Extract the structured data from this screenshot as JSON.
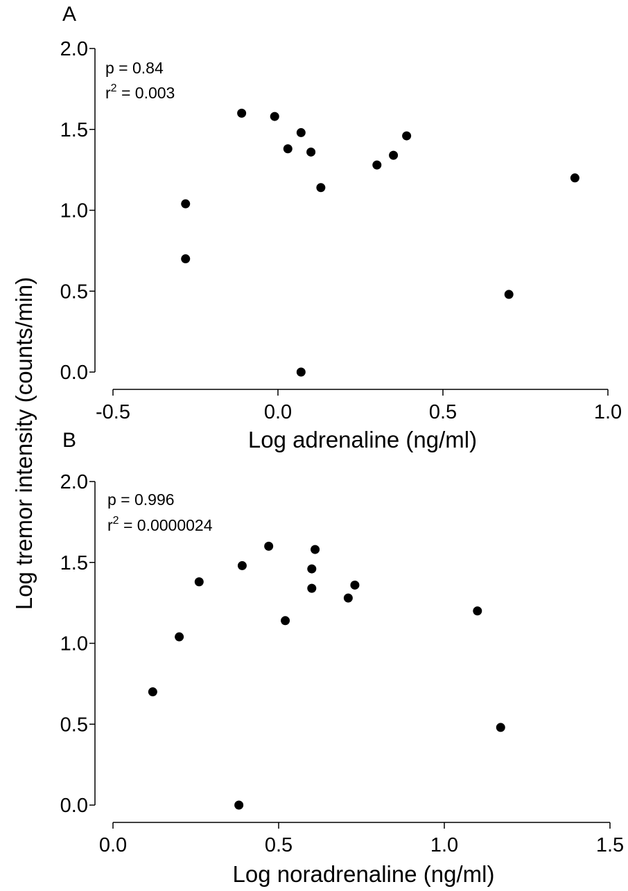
{
  "figure": {
    "shared_ylabel": "Log tremor intensity (counts/min)"
  },
  "chart_data": [
    {
      "type": "scatter",
      "panel_label": "A",
      "xlabel": "Log adrenaline (ng/ml)",
      "ylabel": "Log tremor intensity (counts/min)",
      "xlim": [
        -0.5,
        1.0
      ],
      "ylim": [
        0.0,
        2.0
      ],
      "x_ticks": [
        -0.5,
        0.0,
        0.5,
        1.0
      ],
      "x_tick_labels": [
        "-0.5",
        "0.0",
        "0.5",
        "1.0"
      ],
      "y_ticks": [
        0.0,
        0.5,
        1.0,
        1.5,
        2.0
      ],
      "y_tick_labels": [
        "0.0",
        "0.5",
        "1.0",
        "1.5",
        "2.0"
      ],
      "stats": {
        "p_text": "p = 0.84",
        "r2_prefix": "r",
        "r2_sup": "2",
        "r2_value": " = 0.003"
      },
      "points": [
        {
          "x": -0.28,
          "y": 1.04
        },
        {
          "x": -0.28,
          "y": 0.7
        },
        {
          "x": -0.11,
          "y": 1.6
        },
        {
          "x": -0.01,
          "y": 1.58
        },
        {
          "x": 0.03,
          "y": 1.38
        },
        {
          "x": 0.07,
          "y": 1.48
        },
        {
          "x": 0.1,
          "y": 1.36
        },
        {
          "x": 0.13,
          "y": 1.14
        },
        {
          "x": 0.07,
          "y": 0.0
        },
        {
          "x": 0.3,
          "y": 1.28
        },
        {
          "x": 0.35,
          "y": 1.34
        },
        {
          "x": 0.39,
          "y": 1.46
        },
        {
          "x": 0.7,
          "y": 0.48
        },
        {
          "x": 0.9,
          "y": 1.2
        }
      ],
      "marker_color": "#000000",
      "grid": false
    },
    {
      "type": "scatter",
      "panel_label": "B",
      "xlabel": "Log noradrenaline (ng/ml)",
      "ylabel": "Log tremor intensity (counts/min)",
      "xlim": [
        0.0,
        1.5
      ],
      "ylim": [
        0.0,
        2.0
      ],
      "x_ticks": [
        0.0,
        0.5,
        1.0,
        1.5
      ],
      "x_tick_labels": [
        "0.0",
        "0.5",
        "1.0",
        "1.5"
      ],
      "y_ticks": [
        0.0,
        0.5,
        1.0,
        1.5,
        2.0
      ],
      "y_tick_labels": [
        "0.0",
        "0.5",
        "1.0",
        "1.5",
        "2.0"
      ],
      "stats": {
        "p_text": "p = 0.996",
        "r2_prefix": "r",
        "r2_sup": "2",
        "r2_value": " = 0.0000024"
      },
      "points": [
        {
          "x": 0.12,
          "y": 0.7
        },
        {
          "x": 0.2,
          "y": 1.04
        },
        {
          "x": 0.26,
          "y": 1.38
        },
        {
          "x": 0.38,
          "y": 0.0
        },
        {
          "x": 0.39,
          "y": 1.48
        },
        {
          "x": 0.47,
          "y": 1.6
        },
        {
          "x": 0.52,
          "y": 1.14
        },
        {
          "x": 0.6,
          "y": 1.46
        },
        {
          "x": 0.6,
          "y": 1.34
        },
        {
          "x": 0.61,
          "y": 1.58
        },
        {
          "x": 0.71,
          "y": 1.28
        },
        {
          "x": 0.73,
          "y": 1.36
        },
        {
          "x": 1.1,
          "y": 1.2
        },
        {
          "x": 1.17,
          "y": 0.48
        }
      ],
      "marker_color": "#000000",
      "grid": false
    }
  ]
}
